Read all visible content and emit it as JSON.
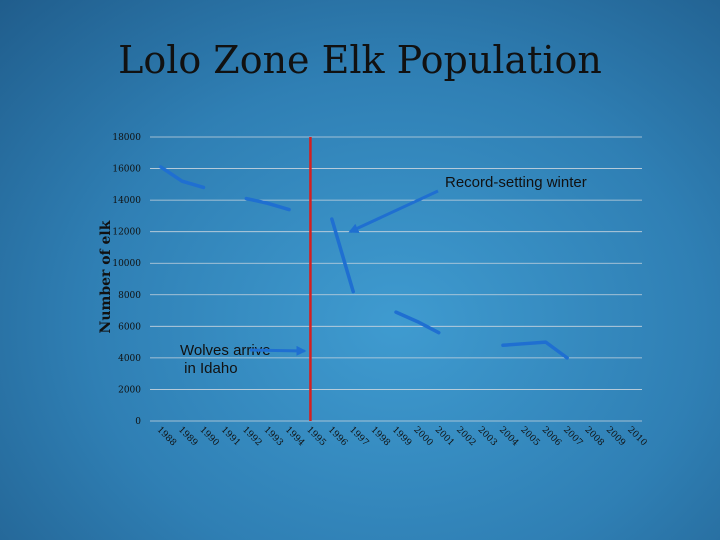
{
  "slide": {
    "title": "Lolo Zone Elk Population"
  },
  "chart_data": {
    "type": "line",
    "title": "Lolo Zone Elk Population",
    "ylabel": "Number of elk",
    "xlabel": "",
    "ylim": [
      0,
      18000
    ],
    "yticks": [
      0,
      2000,
      4000,
      6000,
      8000,
      10000,
      12000,
      14000,
      16000,
      18000
    ],
    "grid": true,
    "x": [
      "1988",
      "1989",
      "1990",
      "1991",
      "1992",
      "1993",
      "1994",
      "1995",
      "1996",
      "1997",
      "1998",
      "1999",
      "2000",
      "2001",
      "2002",
      "2003",
      "2004",
      "2005",
      "2006",
      "2007",
      "2008",
      "2009",
      "2010"
    ],
    "segments": [
      {
        "x": [
          "1988",
          "1989",
          "1990"
        ],
        "values": [
          16100,
          15200,
          14800
        ]
      },
      {
        "x": [
          "1992",
          "1993",
          "1994"
        ],
        "values": [
          14100,
          13800,
          13400
        ]
      },
      {
        "x": [
          "1996",
          "1997"
        ],
        "values": [
          12800,
          8200
        ]
      },
      {
        "x": [
          "1999",
          "2000",
          "2001"
        ],
        "values": [
          6900,
          6300,
          5600
        ]
      },
      {
        "x": [
          "2004",
          "2005",
          "2006",
          "2007"
        ],
        "values": [
          4800,
          4900,
          5000,
          4000
        ]
      }
    ],
    "series_color": "#1f6fd1",
    "marker_line": {
      "x": "1995",
      "color": "#d42020"
    },
    "annotations": [
      {
        "text": "Record-setting winter",
        "arrow_to": {
          "x": "1997",
          "y": 12000
        }
      },
      {
        "text": "Wolves arrive in Idaho",
        "lines": [
          "Wolves arrive",
          " in Idaho"
        ],
        "arrow_to": {
          "x": "1995",
          "y": 4500
        }
      }
    ]
  }
}
